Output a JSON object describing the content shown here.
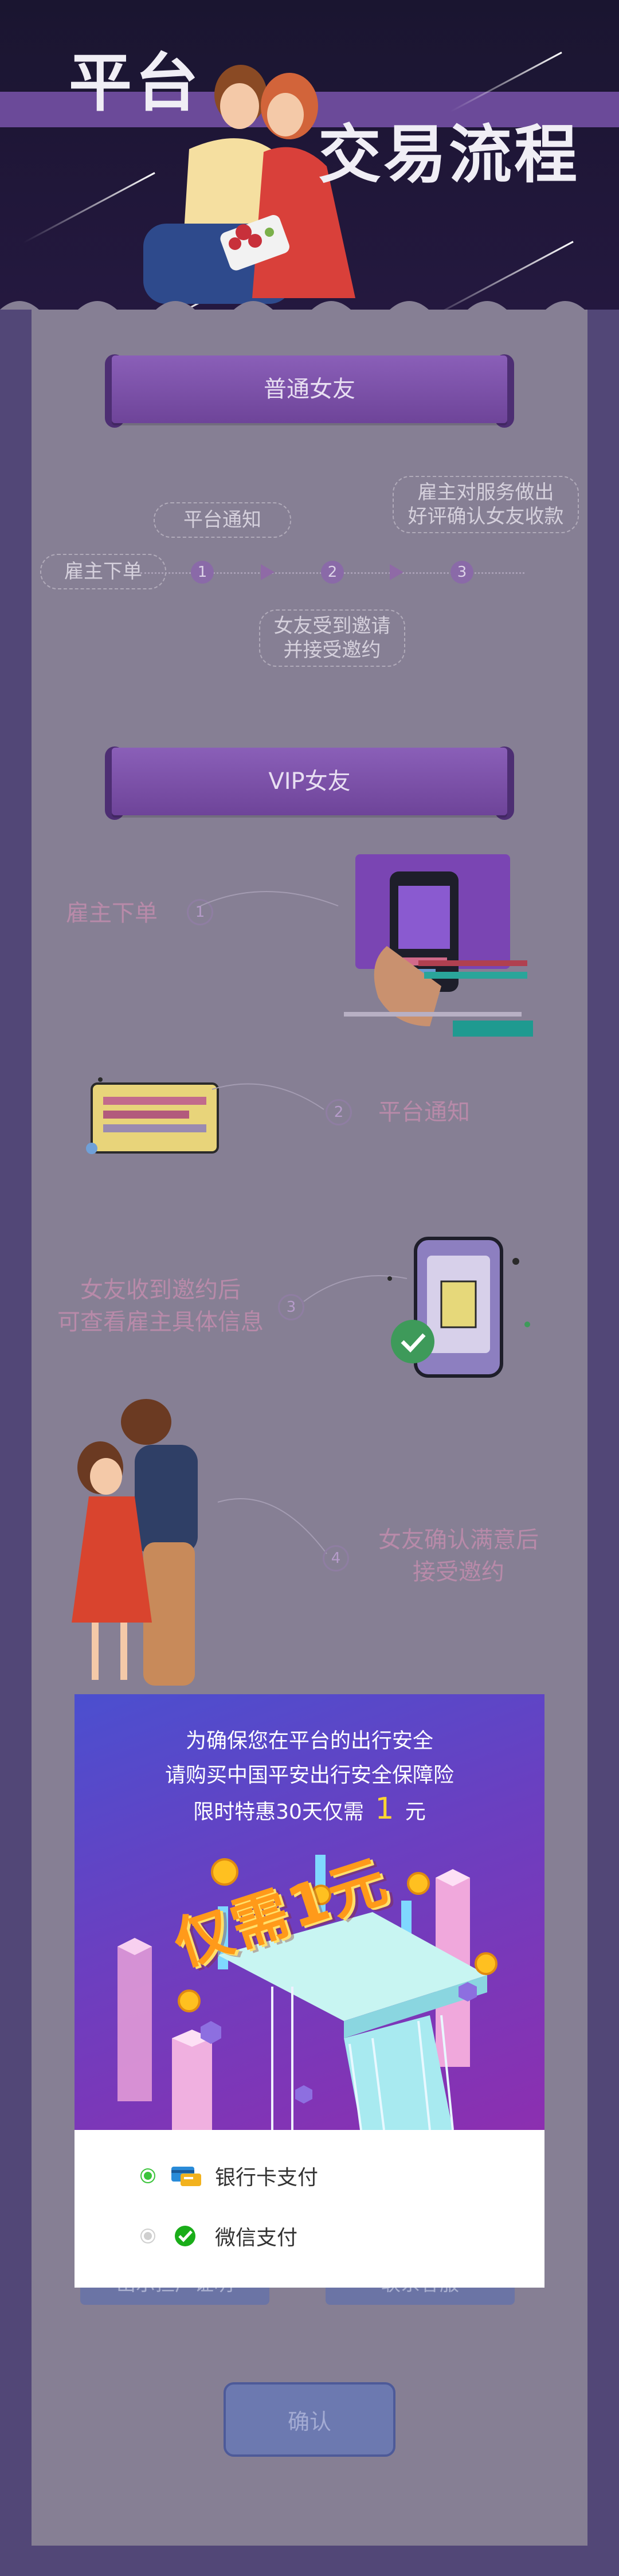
{
  "header": {
    "title_line1": "平台",
    "title_line2": "交易流程"
  },
  "normal": {
    "banner": "普通女友",
    "start": "雇主下单",
    "notify": "平台通知",
    "accept": [
      "女友受到邀请",
      "并接受邀约"
    ],
    "review": [
      "雇主对服务做出",
      "好评确认女友收款"
    ],
    "steps": [
      "1",
      "2",
      "3"
    ]
  },
  "vip": {
    "banner": "VIP女友",
    "step1": {
      "num": "1",
      "text": "雇主下单"
    },
    "step2": {
      "num": "2",
      "text": "平台通知"
    },
    "step3": {
      "num": "3",
      "lines": [
        "女友收到邀约后",
        "可查看雇主具体信息"
      ]
    },
    "step4": {
      "num": "4",
      "lines": [
        "女友确认满意后",
        "接受邀约"
      ]
    }
  },
  "modal": {
    "line1": "为确保您在平台的出行安全",
    "line2": "请购买中国平安出行安全保障险",
    "line3_prefix": "限时特惠30天仅需",
    "price": "1",
    "line3_suffix": "元",
    "promo": "仅需1元",
    "payments": [
      {
        "label": "银行卡支付",
        "selected": true
      },
      {
        "label": "微信支付",
        "selected": false
      }
    ]
  },
  "actions": {
    "left_btn": "出示担广证明",
    "right_btn": "联系客服",
    "confirm": "确认"
  },
  "colors": {
    "accent_green": "#3bc43b",
    "price_yellow": "#ffd531"
  }
}
